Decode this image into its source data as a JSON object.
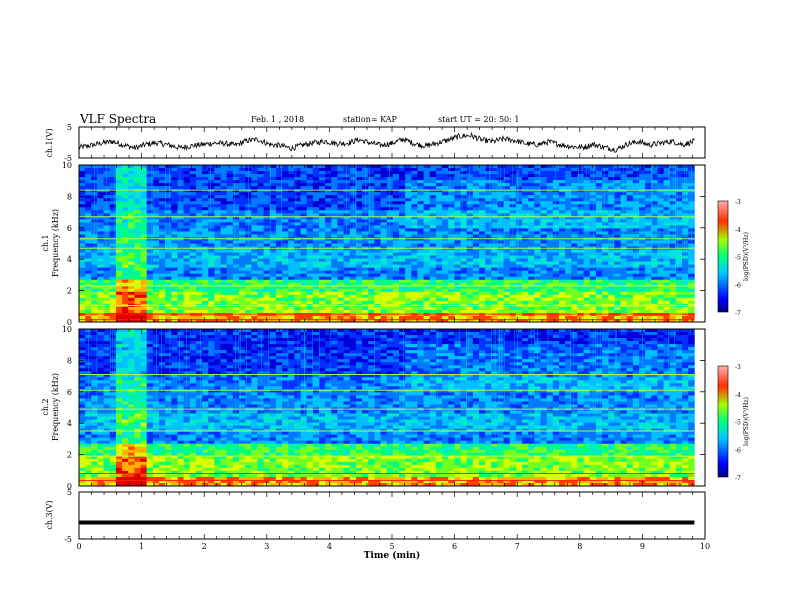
{
  "header": {
    "title": "VLF Spectra",
    "date": "Feb. 1 , 2018",
    "station": "station= KAP",
    "start": "start UT = 20: 50: 1"
  },
  "chart_data": [
    {
      "type": "line",
      "panel": "ch1-waveform",
      "ylabel": "ch.1(V)",
      "ylim": [
        -5,
        5
      ],
      "yticks": [
        "5",
        "-5"
      ],
      "xlim": [
        0,
        10
      ],
      "x_end": 9.83,
      "series": [
        {
          "values": [
            -1.6,
            -1.0,
            -0.2,
            0.3,
            -0.8,
            -1.8,
            -0.6,
            -0.1,
            -0.8,
            -1.7,
            -1.1,
            -0.7,
            -0.2,
            -0.3,
            -0.9,
            0.6,
            1.0,
            -0.6,
            -1.0,
            -1.9,
            -0.8,
            -0.1,
            0.4,
            -0.3,
            -0.2,
            0.9,
            -0.1,
            -0.9,
            -0.2,
            1.1,
            -0.4,
            -1.1,
            -0.2,
            0.8,
            2.0,
            2.3,
            0.8,
            0.3,
            1.2,
            0.6,
            -0.4,
            -0.7,
            0.2,
            -0.7,
            -1.3,
            -1.6,
            -0.6,
            -1.6,
            -2.3,
            -0.5,
            0.3,
            -0.8,
            -0.2,
            0.4,
            -0.7,
            0.4
          ]
        }
      ]
    },
    {
      "type": "heatmap",
      "panel": "ch1-spectrogram",
      "ylabel": "ch.1 Frequency (kHz)",
      "ylim": [
        0,
        10
      ],
      "yticks": [
        "0",
        "2",
        "4",
        "6",
        "8",
        "10"
      ],
      "xlim": [
        0,
        10
      ],
      "x_end": 9.83,
      "colorbar": {
        "label": "log(PSD)(V²/Hz)",
        "range": [
          -7,
          -3
        ],
        "ticks": [
          "-3",
          "-4",
          "-5",
          "-6",
          "-7"
        ]
      }
    },
    {
      "type": "heatmap",
      "panel": "ch2-spectrogram",
      "ylabel": "ch.2 Frequency (kHz)",
      "ylim": [
        0,
        10
      ],
      "yticks": [
        "0",
        "2",
        "4",
        "6",
        "8",
        "10"
      ],
      "xlim": [
        0,
        10
      ],
      "x_end": 9.83,
      "colorbar": {
        "label": "log(PSD)(V²/Hz)",
        "range": [
          -7,
          -3
        ],
        "ticks": [
          "-3",
          "-4",
          "-5",
          "-6",
          "-7"
        ]
      }
    },
    {
      "type": "line",
      "panel": "ch3-waveform",
      "ylabel": "ch.3(V)",
      "ylim": [
        -5,
        5
      ],
      "yticks": [
        "5",
        "-5"
      ],
      "xlim": [
        0,
        10
      ],
      "x_end": 9.83,
      "series": [
        {
          "values": [
            -1.5,
            -1.5
          ]
        }
      ]
    }
  ],
  "xaxis": {
    "label": "Time (min)",
    "ticks": [
      "0",
      "1",
      "2",
      "3",
      "4",
      "5",
      "6",
      "7",
      "8",
      "9",
      "10"
    ]
  },
  "colors": {
    "axis": "#000000",
    "background": "#ffffff",
    "trace": "#000000"
  }
}
